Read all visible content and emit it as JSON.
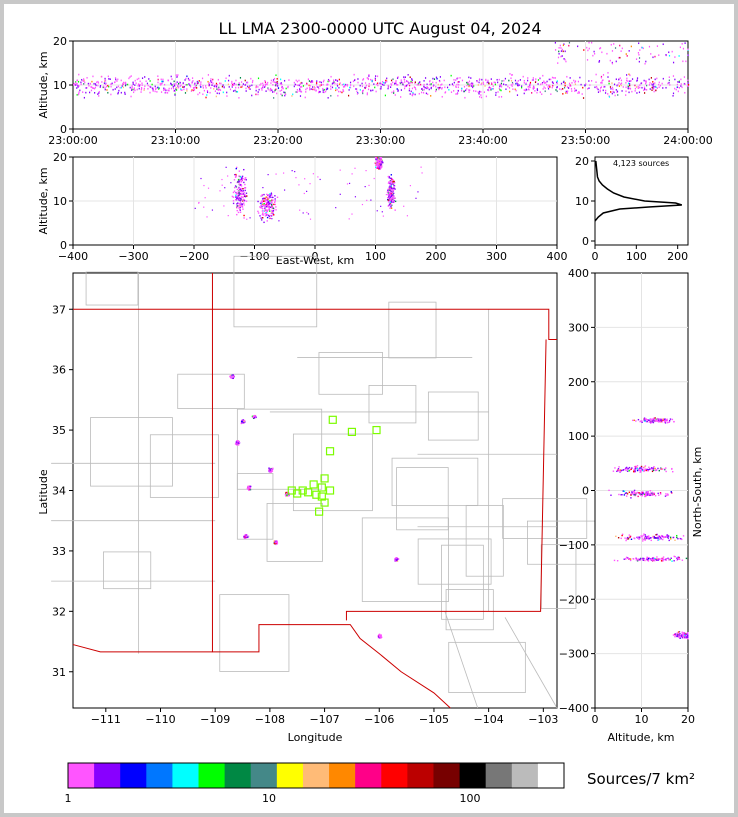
{
  "title": "LL LMA 2300-0000 UTC August 04, 2024",
  "colors": {
    "colorbar": [
      "#ff55ff",
      "#8800ff",
      "#0000ff",
      "#0077ff",
      "#00ffff",
      "#00ff00",
      "#008844",
      "#448888",
      "#ffff00",
      "#ffbb77",
      "#ff8800",
      "#ff0088",
      "#ff0000",
      "#bb0000",
      "#770000",
      "#000000",
      "#777777",
      "#bbbbbb",
      "#ffffff"
    ],
    "station": "#7cfc00",
    "border": "#cc0000",
    "county": "#bbbbbb"
  },
  "chart_data": [
    {
      "name": "altitude-time",
      "type": "scatter",
      "ylabel": "Altitude, km",
      "ylim": [
        0,
        20
      ],
      "yticks": [
        "0",
        "10",
        "20"
      ],
      "xticks": [
        "23:00:00",
        "23:10:00",
        "23:20:00",
        "23:30:00",
        "23:40:00",
        "23:50:00",
        "24:00:00"
      ],
      "xlim_minutes": [
        0,
        60
      ]
    },
    {
      "name": "east-west-altitude",
      "type": "scatter",
      "xlabel": "East-West, km",
      "ylabel": "Altitude, km",
      "xlim": [
        -400,
        400
      ],
      "ylim": [
        0,
        20
      ],
      "xticks": [
        "−400",
        "−300",
        "−200",
        "−100",
        "0",
        "100",
        "200",
        "300",
        "400"
      ],
      "yticks": [
        "0",
        "10",
        "20"
      ],
      "clusters": [
        {
          "x": -125,
          "y": 12,
          "w": 14,
          "h": 7
        },
        {
          "x": -80,
          "y": 9,
          "w": 20,
          "h": 4
        },
        {
          "x": 105,
          "y": 19,
          "w": 8,
          "h": 2
        },
        {
          "x": 125,
          "y": 12,
          "w": 8,
          "h": 5
        }
      ]
    },
    {
      "name": "altitude-histogram",
      "type": "line",
      "annotation": "4,123 sources",
      "xlim": [
        0,
        225
      ],
      "ylim": [
        -1,
        21
      ],
      "xticks": [
        "0",
        "100",
        "200"
      ],
      "yticks": [
        "0",
        "10",
        "20"
      ],
      "y": [
        5,
        6,
        7,
        8,
        8.5,
        9,
        9.5,
        10,
        11,
        12,
        13,
        14,
        15,
        16,
        17,
        18,
        19,
        20
      ],
      "x": [
        0,
        8,
        20,
        60,
        130,
        210,
        195,
        120,
        70,
        45,
        30,
        18,
        10,
        6,
        5,
        4,
        3,
        2
      ]
    },
    {
      "name": "plan-view",
      "type": "scatter",
      "xlabel": "Longitude",
      "ylabel": "Latitude",
      "xlim": [
        -111.6,
        -102.75
      ],
      "ylim": [
        30.4,
        37.6
      ],
      "xticks": [
        "−111",
        "−110",
        "−109",
        "−108",
        "−107",
        "−106",
        "−105",
        "−104",
        "−103"
      ],
      "yticks": [
        "31",
        "32",
        "33",
        "34",
        "35",
        "36",
        "37"
      ],
      "clusters": [
        {
          "lon": -108.5,
          "lat": 35.15
        },
        {
          "lon": -108.3,
          "lat": 35.23
        },
        {
          "lon": -108.0,
          "lat": 34.35
        },
        {
          "lon": -108.4,
          "lat": 34.05
        },
        {
          "lon": -107.7,
          "lat": 33.95
        },
        {
          "lon": -108.45,
          "lat": 33.25
        },
        {
          "lon": -107.9,
          "lat": 33.15
        },
        {
          "lon": -106.0,
          "lat": 31.6
        },
        {
          "lon": -105.7,
          "lat": 32.87
        },
        {
          "lon": -108.6,
          "lat": 34.8
        },
        {
          "lon": -108.7,
          "lat": 35.9
        }
      ],
      "stations": [
        [
          -106.85,
          35.17
        ],
        [
          -106.5,
          34.97
        ],
        [
          -106.05,
          35.0
        ],
        [
          -106.9,
          34.65
        ],
        [
          -107.0,
          34.2
        ],
        [
          -107.2,
          34.1
        ],
        [
          -107.05,
          34.05
        ],
        [
          -107.4,
          34.0
        ],
        [
          -107.6,
          34.0
        ],
        [
          -107.3,
          33.97
        ],
        [
          -107.15,
          33.93
        ],
        [
          -106.9,
          34.0
        ],
        [
          -107.5,
          33.95
        ],
        [
          -107.0,
          33.8
        ],
        [
          -107.1,
          33.65
        ],
        [
          -107.05,
          33.9
        ]
      ]
    },
    {
      "name": "altitude-north-south",
      "type": "scatter",
      "xlabel": "Altitude, km",
      "ylabel": "North-South, km",
      "xlim": [
        0,
        20
      ],
      "ylim": [
        -400,
        400
      ],
      "xticks": [
        "0",
        "10",
        "20"
      ],
      "yticks": [
        "−400",
        "−300",
        "−200",
        "−100",
        "0",
        "100",
        "200",
        "300",
        "400"
      ],
      "clusters": [
        {
          "x": 10,
          "y": 40,
          "w": 8,
          "h": 8
        },
        {
          "x": 10,
          "y": -5,
          "w": 8,
          "h": 8
        },
        {
          "x": 12,
          "y": -85,
          "w": 10,
          "h": 8
        },
        {
          "x": 12,
          "y": -125,
          "w": 10,
          "h": 6
        },
        {
          "x": 13,
          "y": 130,
          "w": 6,
          "h": 6
        },
        {
          "x": 19,
          "y": -265,
          "w": 4,
          "h": 8
        }
      ]
    },
    {
      "name": "colorbar",
      "type": "heatmap",
      "label": "Sources/7 km²",
      "ticks": [
        "1",
        "10",
        "100"
      ],
      "scale": "log"
    }
  ]
}
